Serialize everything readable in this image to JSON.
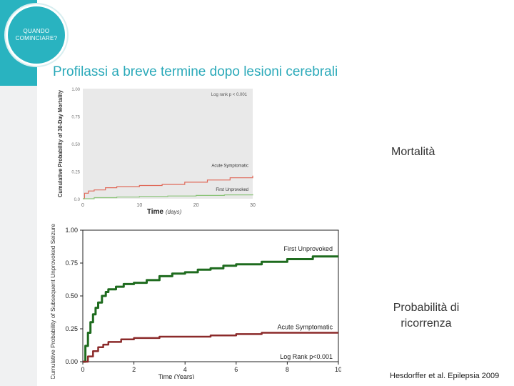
{
  "header": {
    "badge_text": "QUANDO COMINCIARE?",
    "title": "Profilassi a breve termine dopo lesioni cerebrali"
  },
  "labels": {
    "mortality": "Mortalità",
    "recurrence": "Probabilità di ricorrenza",
    "reference": "Hesdorffer et al. Epilepsia 2009"
  },
  "colors": {
    "accent": "#29b3c0",
    "chart1_bg": "#e9e9e9",
    "chart1_red": "#e06a5a",
    "chart1_green": "#8cc47a",
    "chart2_green": "#1e6b1e",
    "chart2_red": "#8b2a2a"
  },
  "chart_data": [
    {
      "type": "line",
      "xlabel": "Time",
      "xlabel_unit": "(days)",
      "ylabel": "Cumulative Probability of 30-Day Mortality",
      "xlim": [
        0,
        30
      ],
      "ylim": [
        0,
        1
      ],
      "x_ticks": [
        "0",
        "10",
        "20",
        "30"
      ],
      "y_ticks": [
        "0.0",
        "0.25",
        "0.50",
        "0.75",
        "1.00"
      ],
      "annotation": "Log rank p < 0.001",
      "grid": false,
      "series": [
        {
          "name": "Acute Symptomatic",
          "points": [
            [
              0,
              0
            ],
            [
              0.3,
              0.05
            ],
            [
              1,
              0.07
            ],
            [
              2,
              0.08
            ],
            [
              4,
              0.1
            ],
            [
              6,
              0.11
            ],
            [
              10,
              0.12
            ],
            [
              14,
              0.13
            ],
            [
              18,
              0.15
            ],
            [
              22,
              0.17
            ],
            [
              26,
              0.19
            ],
            [
              30,
              0.21
            ]
          ]
        },
        {
          "name": "First Unprovoked",
          "points": [
            [
              0,
              0
            ],
            [
              2,
              0.01
            ],
            [
              6,
              0.015
            ],
            [
              10,
              0.02
            ],
            [
              15,
              0.025
            ],
            [
              20,
              0.03
            ],
            [
              25,
              0.035
            ],
            [
              30,
              0.04
            ]
          ]
        }
      ]
    },
    {
      "type": "line",
      "xlabel": "Time (Years)",
      "ylabel": "Cumulative Probability of Subsequent Unprovoked Seizure",
      "xlim": [
        0,
        10
      ],
      "ylim": [
        0,
        1
      ],
      "x_ticks": [
        "0",
        "2",
        "4",
        "6",
        "8",
        "10"
      ],
      "y_ticks": [
        "0.00",
        "0.25",
        "0.50",
        "0.75",
        "1.00"
      ],
      "annotation": "Log Rank p<0.001",
      "grid": false,
      "series": [
        {
          "name": "First Unprovoked",
          "points": [
            [
              0,
              0
            ],
            [
              0.1,
              0.12
            ],
            [
              0.2,
              0.22
            ],
            [
              0.3,
              0.3
            ],
            [
              0.4,
              0.36
            ],
            [
              0.5,
              0.41
            ],
            [
              0.6,
              0.45
            ],
            [
              0.75,
              0.5
            ],
            [
              0.9,
              0.53
            ],
            [
              1,
              0.55
            ],
            [
              1.3,
              0.57
            ],
            [
              1.6,
              0.59
            ],
            [
              2,
              0.6
            ],
            [
              2.5,
              0.62
            ],
            [
              3,
              0.65
            ],
            [
              3.5,
              0.67
            ],
            [
              4,
              0.68
            ],
            [
              4.5,
              0.7
            ],
            [
              5,
              0.71
            ],
            [
              5.5,
              0.73
            ],
            [
              6,
              0.74
            ],
            [
              7,
              0.76
            ],
            [
              8,
              0.78
            ],
            [
              9,
              0.8
            ],
            [
              10,
              0.8
            ]
          ]
        },
        {
          "name": "Acute Symptomatic",
          "points": [
            [
              0,
              0
            ],
            [
              0.2,
              0.04
            ],
            [
              0.4,
              0.08
            ],
            [
              0.6,
              0.11
            ],
            [
              0.8,
              0.13
            ],
            [
              1,
              0.15
            ],
            [
              1.5,
              0.17
            ],
            [
              2,
              0.18
            ],
            [
              3,
              0.19
            ],
            [
              4,
              0.19
            ],
            [
              5,
              0.2
            ],
            [
              6,
              0.21
            ],
            [
              7,
              0.22
            ],
            [
              8,
              0.22
            ],
            [
              10,
              0.22
            ]
          ]
        }
      ]
    }
  ]
}
